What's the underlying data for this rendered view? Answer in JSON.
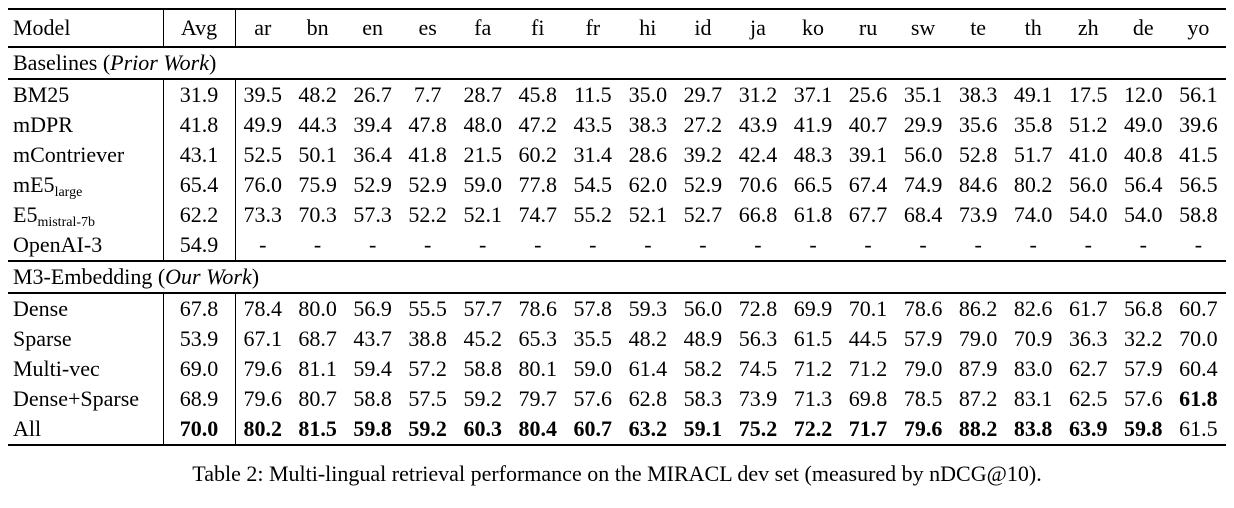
{
  "caption": "Table 2: Multi-lingual retrieval performance on the MIRACL dev set (measured by nDCG@10).",
  "table": {
    "columns": [
      "Model",
      "Avg",
      "ar",
      "bn",
      "en",
      "es",
      "fa",
      "fi",
      "fr",
      "hi",
      "id",
      "ja",
      "ko",
      "ru",
      "sw",
      "te",
      "th",
      "zh",
      "de",
      "yo"
    ],
    "sections": [
      {
        "label_prefix": "Baselines (",
        "label_italic": "Prior Work",
        "label_suffix": ")",
        "rows": [
          {
            "model": "BM25",
            "sub": "",
            "avg": "31.9",
            "avg_bold": false,
            "bold_cells": [],
            "values": [
              "39.5",
              "48.2",
              "26.7",
              "7.7",
              "28.7",
              "45.8",
              "11.5",
              "35.0",
              "29.7",
              "31.2",
              "37.1",
              "25.6",
              "35.1",
              "38.3",
              "49.1",
              "17.5",
              "12.0",
              "56.1"
            ]
          },
          {
            "model": "mDPR",
            "sub": "",
            "avg": "41.8",
            "avg_bold": false,
            "bold_cells": [],
            "values": [
              "49.9",
              "44.3",
              "39.4",
              "47.8",
              "48.0",
              "47.2",
              "43.5",
              "38.3",
              "27.2",
              "43.9",
              "41.9",
              "40.7",
              "29.9",
              "35.6",
              "35.8",
              "51.2",
              "49.0",
              "39.6"
            ]
          },
          {
            "model": "mContriever",
            "sub": "",
            "avg": "43.1",
            "avg_bold": false,
            "bold_cells": [],
            "values": [
              "52.5",
              "50.1",
              "36.4",
              "41.8",
              "21.5",
              "60.2",
              "31.4",
              "28.6",
              "39.2",
              "42.4",
              "48.3",
              "39.1",
              "56.0",
              "52.8",
              "51.7",
              "41.0",
              "40.8",
              "41.5"
            ]
          },
          {
            "model": "mE5",
            "sub": "large",
            "avg": "65.4",
            "avg_bold": false,
            "bold_cells": [],
            "values": [
              "76.0",
              "75.9",
              "52.9",
              "52.9",
              "59.0",
              "77.8",
              "54.5",
              "62.0",
              "52.9",
              "70.6",
              "66.5",
              "67.4",
              "74.9",
              "84.6",
              "80.2",
              "56.0",
              "56.4",
              "56.5"
            ]
          },
          {
            "model": "E5",
            "sub": "mistral-7b",
            "avg": "62.2",
            "avg_bold": false,
            "bold_cells": [],
            "values": [
              "73.3",
              "70.3",
              "57.3",
              "52.2",
              "52.1",
              "74.7",
              "55.2",
              "52.1",
              "52.7",
              "66.8",
              "61.8",
              "67.7",
              "68.4",
              "73.9",
              "74.0",
              "54.0",
              "54.0",
              "58.8"
            ]
          },
          {
            "model": "OpenAI-3",
            "sub": "",
            "avg": "54.9",
            "avg_bold": false,
            "bold_cells": [],
            "values": [
              "-",
              "-",
              "-",
              "-",
              "-",
              "-",
              "-",
              "-",
              "-",
              "-",
              "-",
              "-",
              "-",
              "-",
              "-",
              "-",
              "-",
              "-"
            ]
          }
        ]
      },
      {
        "label_prefix": "M3-Embedding (",
        "label_italic": "Our Work",
        "label_suffix": ")",
        "rows": [
          {
            "model": "Dense",
            "sub": "",
            "avg": "67.8",
            "avg_bold": false,
            "bold_cells": [],
            "values": [
              "78.4",
              "80.0",
              "56.9",
              "55.5",
              "57.7",
              "78.6",
              "57.8",
              "59.3",
              "56.0",
              "72.8",
              "69.9",
              "70.1",
              "78.6",
              "86.2",
              "82.6",
              "61.7",
              "56.8",
              "60.7"
            ]
          },
          {
            "model": "Sparse",
            "sub": "",
            "avg": "53.9",
            "avg_bold": false,
            "bold_cells": [],
            "values": [
              "67.1",
              "68.7",
              "43.7",
              "38.8",
              "45.2",
              "65.3",
              "35.5",
              "48.2",
              "48.9",
              "56.3",
              "61.5",
              "44.5",
              "57.9",
              "79.0",
              "70.9",
              "36.3",
              "32.2",
              "70.0"
            ]
          },
          {
            "model": "Multi-vec",
            "sub": "",
            "avg": "69.0",
            "avg_bold": false,
            "bold_cells": [],
            "values": [
              "79.6",
              "81.1",
              "59.4",
              "57.2",
              "58.8",
              "80.1",
              "59.0",
              "61.4",
              "58.2",
              "74.5",
              "71.2",
              "71.2",
              "79.0",
              "87.9",
              "83.0",
              "62.7",
              "57.9",
              "60.4"
            ]
          },
          {
            "model": "Dense+Sparse",
            "sub": "",
            "avg": "68.9",
            "avg_bold": false,
            "bold_cells": [
              17
            ],
            "values": [
              "79.6",
              "80.7",
              "58.8",
              "57.5",
              "59.2",
              "79.7",
              "57.6",
              "62.8",
              "58.3",
              "73.9",
              "71.3",
              "69.8",
              "78.5",
              "87.2",
              "83.1",
              "62.5",
              "57.6",
              "61.8"
            ]
          },
          {
            "model": "All",
            "sub": "",
            "avg": "70.0",
            "avg_bold": true,
            "bold_cells": [
              0,
              1,
              2,
              3,
              4,
              5,
              6,
              7,
              8,
              9,
              10,
              11,
              12,
              13,
              14,
              15,
              16
            ],
            "values": [
              "80.2",
              "81.5",
              "59.8",
              "59.2",
              "60.3",
              "80.4",
              "60.7",
              "63.2",
              "59.1",
              "75.2",
              "72.2",
              "71.7",
              "79.6",
              "88.2",
              "83.8",
              "63.9",
              "59.8",
              "61.5"
            ]
          }
        ]
      }
    ]
  }
}
